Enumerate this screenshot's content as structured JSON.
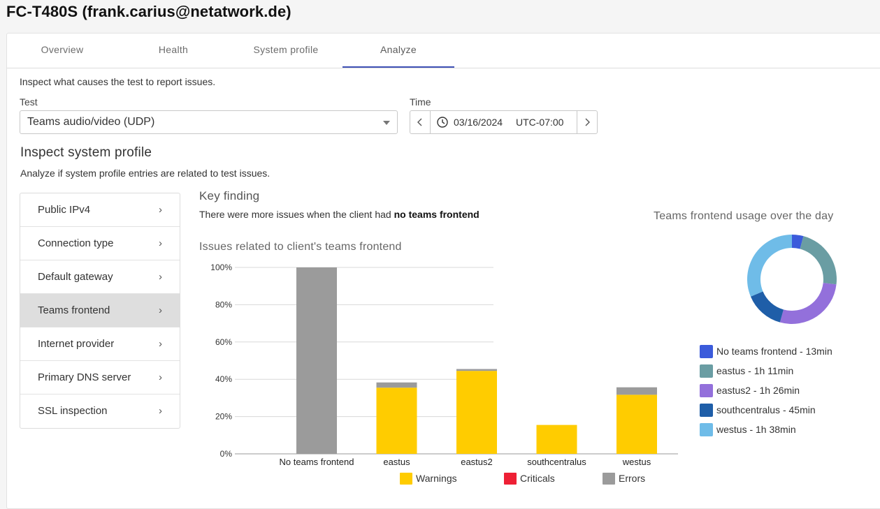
{
  "header": {
    "title": "FC-T480S (frank.carius@netatwork.de)"
  },
  "tabs": [
    {
      "label": "Overview",
      "active": false
    },
    {
      "label": "Health",
      "active": false
    },
    {
      "label": "System profile",
      "active": false
    },
    {
      "label": "Analyze",
      "active": true
    }
  ],
  "analyze": {
    "intro": "Inspect what causes the test to report issues.",
    "test_label": "Test",
    "test_value": "Teams audio/video (UDP)",
    "time_label": "Time",
    "time_date": "03/16/2024",
    "time_tz": "UTC-07:00"
  },
  "inspect": {
    "heading": "Inspect system profile",
    "subheading": "Analyze if system profile entries are related to test issues.",
    "menu": [
      {
        "label": "Public IPv4",
        "active": false
      },
      {
        "label": "Connection type",
        "active": false
      },
      {
        "label": "Default gateway",
        "active": false
      },
      {
        "label": "Teams frontend",
        "active": true
      },
      {
        "label": "Internet provider",
        "active": false
      },
      {
        "label": "Primary DNS server",
        "active": false
      },
      {
        "label": "SSL inspection",
        "active": false
      }
    ]
  },
  "key_finding": {
    "title": "Key finding",
    "text_prefix": "There were more issues when the client had ",
    "text_bold": "no teams frontend"
  },
  "colors": {
    "accent": "#3f51b5",
    "warnings": "#ffcc00",
    "criticals": "#ee2035",
    "errors": "#9b9b9b"
  },
  "chart_data": [
    {
      "type": "bar",
      "title": "Issues related to client's teams frontend",
      "stacked": true,
      "categories": [
        "No teams frontend",
        "eastus",
        "eastus2",
        "southcentralus",
        "westus"
      ],
      "series": [
        {
          "name": "Warnings",
          "color": "#ffcc00",
          "values": [
            0,
            35.5,
            44.5,
            15.5,
            31.7
          ]
        },
        {
          "name": "Criticals",
          "color": "#ee2035",
          "values": [
            0,
            0,
            0,
            0,
            0
          ]
        },
        {
          "name": "Errors",
          "color": "#9b9b9b",
          "values": [
            100,
            2.8,
            1.0,
            0,
            4.0
          ]
        }
      ],
      "y_ticks": [
        "0%",
        "20%",
        "40%",
        "60%",
        "80%",
        "100%"
      ],
      "ylim": [
        0,
        100
      ],
      "grid": true,
      "legend": "bottom"
    },
    {
      "type": "pie",
      "donut": true,
      "title": "Teams frontend usage over the day",
      "slices": [
        {
          "label": "No teams frontend - 13min",
          "minutes": 13,
          "color": "#3b5bdb"
        },
        {
          "label": "eastus - 1h 11min",
          "minutes": 71,
          "color": "#6a9da3"
        },
        {
          "label": "eastus2 - 1h 26min",
          "minutes": 86,
          "color": "#9370db"
        },
        {
          "label": "southcentralus - 45min",
          "minutes": 45,
          "color": "#1f5ea8"
        },
        {
          "label": "westus - 1h 38min",
          "minutes": 98,
          "color": "#6fbce8"
        }
      ],
      "legend": "bottom"
    }
  ]
}
